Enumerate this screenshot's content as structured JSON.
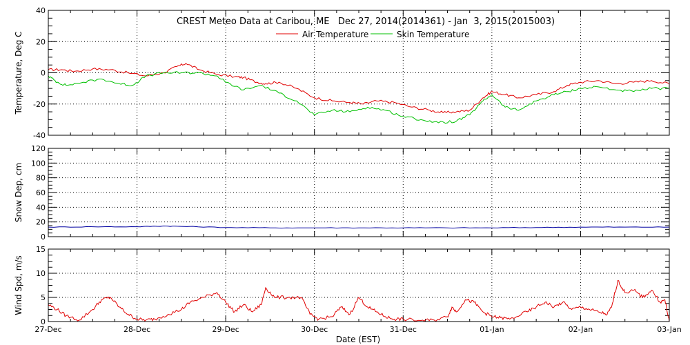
{
  "title": "CREST Meteo Data at Caribou, ME   Dec 27, 2014(2014361) - Jan  3, 2015(2015003)",
  "xlabel": "Date (EST)",
  "x_ticks": [
    "27-Dec",
    "28-Dec",
    "29-Dec",
    "30-Dec",
    "31-Dec",
    "01-Jan",
    "02-Jan",
    "03-Jan"
  ],
  "colors": {
    "air": "#e00000",
    "skin": "#00c000",
    "snow": "#0000a0",
    "wind": "#e00000",
    "grid": "#000000"
  },
  "chart_data": [
    {
      "type": "line",
      "ylabel": "Temperature, Deg C",
      "ylim": [
        -40,
        40
      ],
      "yticks": [
        -40,
        -20,
        0,
        20,
        40
      ],
      "xlim": [
        0,
        7
      ],
      "grid": true,
      "legend_position": "top-center",
      "series": [
        {
          "name": "Air Temperature",
          "points": [
            [
              0,
              2
            ],
            [
              0.15,
              2
            ],
            [
              0.3,
              1
            ],
            [
              0.5,
              2.5
            ],
            [
              0.7,
              2
            ],
            [
              0.9,
              0
            ],
            [
              1.1,
              -2
            ],
            [
              1.3,
              0
            ],
            [
              1.45,
              4
            ],
            [
              1.55,
              6
            ],
            [
              1.7,
              2
            ],
            [
              1.9,
              -1
            ],
            [
              2.1,
              -2.5
            ],
            [
              2.2,
              -3
            ],
            [
              2.35,
              -6
            ],
            [
              2.45,
              -7
            ],
            [
              2.6,
              -6
            ],
            [
              2.8,
              -10
            ],
            [
              3.0,
              -16
            ],
            [
              3.2,
              -18
            ],
            [
              3.4,
              -19
            ],
            [
              3.55,
              -20
            ],
            [
              3.7,
              -18
            ],
            [
              3.9,
              -19
            ],
            [
              4.1,
              -22
            ],
            [
              4.3,
              -24
            ],
            [
              4.45,
              -25.5
            ],
            [
              4.6,
              -25
            ],
            [
              4.75,
              -24
            ],
            [
              4.9,
              -16
            ],
            [
              5.0,
              -12
            ],
            [
              5.15,
              -14
            ],
            [
              5.3,
              -16
            ],
            [
              5.5,
              -14
            ],
            [
              5.7,
              -12
            ],
            [
              5.85,
              -8
            ],
            [
              6.0,
              -6
            ],
            [
              6.2,
              -5
            ],
            [
              6.4,
              -7
            ],
            [
              6.6,
              -6
            ],
            [
              6.8,
              -5
            ],
            [
              7.0,
              -7
            ]
          ]
        },
        {
          "name": "Skin Temperature",
          "points": [
            [
              0,
              -2
            ],
            [
              0.1,
              -6
            ],
            [
              0.2,
              -8
            ],
            [
              0.4,
              -6
            ],
            [
              0.6,
              -4
            ],
            [
              0.8,
              -7
            ],
            [
              0.95,
              -8
            ],
            [
              1.1,
              -2
            ],
            [
              1.3,
              0
            ],
            [
              1.5,
              0
            ],
            [
              1.7,
              0
            ],
            [
              1.9,
              -2
            ],
            [
              2.0,
              -6
            ],
            [
              2.2,
              -11
            ],
            [
              2.4,
              -8
            ],
            [
              2.6,
              -13
            ],
            [
              2.8,
              -18
            ],
            [
              3.0,
              -27
            ],
            [
              3.2,
              -24
            ],
            [
              3.4,
              -25
            ],
            [
              3.6,
              -22
            ],
            [
              3.8,
              -24
            ],
            [
              4.0,
              -28
            ],
            [
              4.2,
              -30
            ],
            [
              4.4,
              -32
            ],
            [
              4.6,
              -31
            ],
            [
              4.75,
              -27
            ],
            [
              4.9,
              -18
            ],
            [
              5.0,
              -14
            ],
            [
              5.15,
              -22
            ],
            [
              5.3,
              -24
            ],
            [
              5.5,
              -18
            ],
            [
              5.7,
              -14
            ],
            [
              5.85,
              -12
            ],
            [
              6.0,
              -10
            ],
            [
              6.2,
              -9
            ],
            [
              6.4,
              -11
            ],
            [
              6.6,
              -12
            ],
            [
              6.8,
              -10
            ],
            [
              7.0,
              -10
            ]
          ]
        }
      ]
    },
    {
      "type": "line",
      "ylabel": "Snow Dep, cm",
      "ylim": [
        0,
        120
      ],
      "yticks": [
        0,
        20,
        40,
        60,
        80,
        100,
        120
      ],
      "xlim": [
        0,
        7
      ],
      "grid": true,
      "series": [
        {
          "points": [
            [
              0,
              13
            ],
            [
              0.5,
              13.5
            ],
            [
              1.0,
              13.5
            ],
            [
              1.3,
              14.5
            ],
            [
              1.5,
              14
            ],
            [
              2.0,
              12.5
            ],
            [
              2.5,
              12
            ],
            [
              3.0,
              12
            ],
            [
              3.5,
              12
            ],
            [
              4.0,
              12
            ],
            [
              4.5,
              12
            ],
            [
              5.0,
              12
            ],
            [
              5.5,
              12.5
            ],
            [
              6.0,
              13
            ],
            [
              6.5,
              13
            ],
            [
              7.0,
              13
            ]
          ]
        }
      ]
    },
    {
      "type": "line",
      "ylabel": "Wind Spd, m/s",
      "ylim": [
        0,
        15
      ],
      "yticks": [
        0,
        5,
        10,
        15
      ],
      "xlim": [
        0,
        7
      ],
      "grid": true,
      "series": [
        {
          "points": [
            [
              0,
              3.5
            ],
            [
              0.1,
              2.5
            ],
            [
              0.2,
              1.2
            ],
            [
              0.35,
              0.3
            ],
            [
              0.5,
              2.5
            ],
            [
              0.6,
              4.5
            ],
            [
              0.7,
              5
            ],
            [
              0.8,
              3
            ],
            [
              0.9,
              1.5
            ],
            [
              1.0,
              0.5
            ],
            [
              1.1,
              0.3
            ],
            [
              1.2,
              0.5
            ],
            [
              1.35,
              1.5
            ],
            [
              1.5,
              2.5
            ],
            [
              1.6,
              4
            ],
            [
              1.75,
              5
            ],
            [
              1.9,
              6
            ],
            [
              2.0,
              4
            ],
            [
              2.1,
              2
            ],
            [
              2.2,
              3.5
            ],
            [
              2.3,
              2
            ],
            [
              2.4,
              3.5
            ],
            [
              2.45,
              7
            ],
            [
              2.55,
              5
            ],
            [
              2.7,
              5
            ],
            [
              2.85,
              5
            ],
            [
              2.95,
              1.5
            ],
            [
              3.05,
              0.5
            ],
            [
              3.2,
              1
            ],
            [
              3.3,
              3
            ],
            [
              3.4,
              1.5
            ],
            [
              3.5,
              5
            ],
            [
              3.6,
              3
            ],
            [
              3.7,
              2
            ],
            [
              3.8,
              1
            ],
            [
              3.9,
              0.5
            ],
            [
              4.0,
              0.5
            ],
            [
              4.2,
              0.2
            ],
            [
              4.35,
              0.3
            ],
            [
              4.5,
              1
            ],
            [
              4.55,
              3
            ],
            [
              4.6,
              2
            ],
            [
              4.7,
              4.5
            ],
            [
              4.8,
              4
            ],
            [
              4.9,
              2
            ],
            [
              5.0,
              1
            ],
            [
              5.1,
              0.8
            ],
            [
              5.2,
              0.5
            ],
            [
              5.4,
              2
            ],
            [
              5.5,
              3
            ],
            [
              5.6,
              4
            ],
            [
              5.7,
              3
            ],
            [
              5.8,
              4
            ],
            [
              5.9,
              2.5
            ],
            [
              6.0,
              3
            ],
            [
              6.1,
              2.5
            ],
            [
              6.2,
              2
            ],
            [
              6.3,
              1.5
            ],
            [
              6.35,
              3
            ],
            [
              6.42,
              8.5
            ],
            [
              6.5,
              6
            ],
            [
              6.6,
              6.5
            ],
            [
              6.7,
              5
            ],
            [
              6.8,
              6.5
            ],
            [
              6.9,
              4
            ],
            [
              6.95,
              4.5
            ],
            [
              7.0,
              0
            ]
          ]
        }
      ]
    }
  ]
}
